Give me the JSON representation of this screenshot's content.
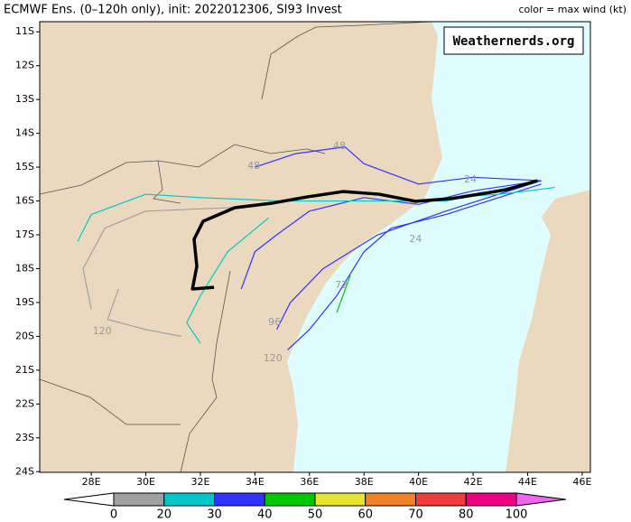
{
  "chart_data": {
    "type": "line",
    "title": "ECMWF Ens. (0–120h only), init: 2022012306, SI93 Invest",
    "subtitle": "color = max wind (kt)",
    "watermark": "Weathernerds.org",
    "xlim": [
      26.11,
      46.3
    ],
    "ylim": [
      -24.02,
      -10.7
    ],
    "xticks": [
      {
        "value": 28,
        "label": "28E"
      },
      {
        "value": 30,
        "label": "30E"
      },
      {
        "value": 32,
        "label": "32E"
      },
      {
        "value": 34,
        "label": "34E"
      },
      {
        "value": 36,
        "label": "36E"
      },
      {
        "value": 38,
        "label": "38E"
      },
      {
        "value": 40,
        "label": "40E"
      },
      {
        "value": 42,
        "label": "42E"
      },
      {
        "value": 44,
        "label": "44E"
      },
      {
        "value": 46,
        "label": "46E"
      }
    ],
    "yticks": [
      {
        "value": -11,
        "label": "11S"
      },
      {
        "value": -12,
        "label": "12S"
      },
      {
        "value": -13,
        "label": "13S"
      },
      {
        "value": -14,
        "label": "14S"
      },
      {
        "value": -15,
        "label": "15S"
      },
      {
        "value": -16,
        "label": "16S"
      },
      {
        "value": -17,
        "label": "17S"
      },
      {
        "value": -18,
        "label": "18S"
      },
      {
        "value": -19,
        "label": "19S"
      },
      {
        "value": -20,
        "label": "20S"
      },
      {
        "value": -21,
        "label": "21S"
      },
      {
        "value": -22,
        "label": "22S"
      },
      {
        "value": -23,
        "label": "23S"
      },
      {
        "value": -24,
        "label": "24S"
      }
    ],
    "series": [
      {
        "color": "#3232ff",
        "x": [
          44.5,
          42,
          40,
          38,
          36,
          34.8,
          34,
          33.5
        ],
        "values": [
          -15.4,
          -15.7,
          -16.1,
          -15.9,
          -16.3,
          -17,
          -17.5,
          -18.6
        ]
      },
      {
        "color": "#3232ff",
        "x": [
          44.5,
          42,
          40,
          38,
          37.3,
          35.5,
          34
        ],
        "values": [
          -15.4,
          -15.3,
          -15.5,
          -14.9,
          -14.4,
          -14.6,
          -15
        ]
      },
      {
        "color": "#00c8c8",
        "x": [
          44.5,
          41,
          38,
          35,
          32,
          30,
          28,
          27.5
        ],
        "values": [
          -15.4,
          -16,
          -16,
          -16,
          -15.9,
          -15.8,
          -16.4,
          -17.2
        ]
      },
      {
        "color": "#3232ff",
        "x": [
          44.5,
          41,
          38.5,
          36.5,
          35.3,
          34.8
        ],
        "values": [
          -15.4,
          -16.3,
          -17,
          -18,
          -19,
          -19.8
        ]
      },
      {
        "color": "#3232ff",
        "x": [
          44.5,
          41,
          39,
          38,
          37,
          36,
          35.2
        ],
        "values": [
          -15.5,
          -16.4,
          -16.8,
          -17.5,
          -18.8,
          -19.8,
          -20.4
        ]
      },
      {
        "color": "#a0a0a0",
        "x": [
          35,
          33,
          30,
          28.5,
          27.7,
          28
        ],
        "values": [
          -16,
          -16.2,
          -16.3,
          -16.8,
          -18,
          -19.2
        ]
      },
      {
        "color": "#a0a0a0",
        "x": [
          29,
          28.6,
          30,
          31.3
        ],
        "values": [
          -18.6,
          -19.5,
          -19.8,
          -20
        ]
      },
      {
        "color": "#00c8c8",
        "x": [
          34.5,
          33,
          32,
          31.5,
          32
        ],
        "values": [
          -16.5,
          -17.5,
          -18.8,
          -19.6,
          -20.2
        ]
      },
      {
        "color": "#00c800",
        "x": [
          37.5,
          37
        ],
        "values": [
          -18.2,
          -19.3
        ]
      },
      {
        "color": "#00c8c8",
        "x": [
          45,
          43,
          41
        ],
        "values": [
          -15.6,
          -15.8,
          -15.9
        ]
      },
      {
        "color": "#000000",
        "x": [
          44.36,
          43.2,
          41.21,
          39.89,
          38.56,
          37.24,
          35.91,
          34.59,
          33.26,
          32.1,
          31.77,
          31.87,
          31.71,
          32.5
        ],
        "values": [
          -15.4,
          -15.67,
          -15.93,
          -16.01,
          -15.8,
          -15.72,
          -15.88,
          -16.07,
          -16.2,
          -16.6,
          -17.13,
          -17.93,
          -18.6,
          -18.55
        ]
      }
    ],
    "point_labels": [
      {
        "text": "48",
        "x": 37.1,
        "y": -14.39
      },
      {
        "text": "48",
        "x": 33.96,
        "y": -14.97
      },
      {
        "text": "24",
        "x": 41.9,
        "y": -15.37
      },
      {
        "text": "24",
        "x": 39.89,
        "y": -17.13
      },
      {
        "text": "72",
        "x": 37.17,
        "y": -18.49
      },
      {
        "text": "96",
        "x": 34.72,
        "y": -19.59
      },
      {
        "text": "120",
        "x": 28.4,
        "y": -19.85
      },
      {
        "text": "120",
        "x": 34.66,
        "y": -20.65
      }
    ],
    "colorbar": {
      "bounds": [
        0,
        20,
        30,
        40,
        50,
        60,
        70,
        80,
        100
      ],
      "colors": [
        "#a0a0a0",
        "#00c8c8",
        "#3232ff",
        "#00c800",
        "#e6e632",
        "#f08228",
        "#f03c3c",
        "#f00082"
      ],
      "under_color": "#ffffff",
      "over_color": "#f064f0"
    }
  }
}
